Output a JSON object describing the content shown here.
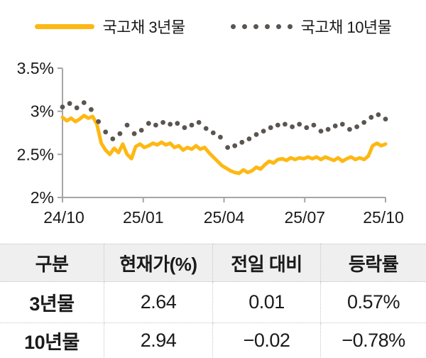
{
  "legend": {
    "series_3y_label": "국고채 3년물",
    "series_10y_label": "국고채 10년물"
  },
  "chart_data": {
    "type": "line",
    "title": "",
    "xlabel": "",
    "ylabel": "",
    "x_tick_labels": [
      "24/10",
      "25/01",
      "25/04",
      "25/07",
      "25/10"
    ],
    "y_tick_labels": [
      "3.5%",
      "3%",
      "2.5%",
      "2%"
    ],
    "y_ticks": [
      3.5,
      3.0,
      2.5,
      2.0
    ],
    "ylim": [
      2.0,
      3.5
    ],
    "grid": false,
    "legend_position": "top",
    "series": [
      {
        "name": "국고채 3년물",
        "style": "solid",
        "color": "#FDB813",
        "values": [
          2.93,
          2.89,
          2.92,
          2.88,
          2.91,
          2.95,
          2.92,
          2.94,
          2.85,
          2.63,
          2.55,
          2.5,
          2.57,
          2.52,
          2.62,
          2.5,
          2.45,
          2.59,
          2.62,
          2.58,
          2.6,
          2.63,
          2.61,
          2.64,
          2.61,
          2.63,
          2.58,
          2.6,
          2.55,
          2.58,
          2.56,
          2.6,
          2.56,
          2.58,
          2.52,
          2.47,
          2.42,
          2.37,
          2.34,
          2.31,
          2.29,
          2.28,
          2.32,
          2.29,
          2.31,
          2.35,
          2.33,
          2.38,
          2.42,
          2.4,
          2.44,
          2.45,
          2.43,
          2.46,
          2.44,
          2.46,
          2.45,
          2.47,
          2.45,
          2.47,
          2.44,
          2.47,
          2.45,
          2.43,
          2.46,
          2.42,
          2.45,
          2.47,
          2.44,
          2.46,
          2.44,
          2.48,
          2.6,
          2.63,
          2.6,
          2.62
        ]
      },
      {
        "name": "국고채 10년물",
        "style": "dotted",
        "color": "#5A554F",
        "values": [
          3.05,
          3.09,
          3.04,
          3.1,
          3.02,
          2.88,
          2.76,
          2.68,
          2.74,
          2.84,
          2.74,
          2.78,
          2.86,
          2.84,
          2.87,
          2.85,
          2.86,
          2.81,
          2.84,
          2.87,
          2.8,
          2.75,
          2.7,
          2.58,
          2.6,
          2.64,
          2.68,
          2.73,
          2.77,
          2.81,
          2.84,
          2.85,
          2.82,
          2.85,
          2.81,
          2.84,
          2.77,
          2.79,
          2.83,
          2.85,
          2.79,
          2.82,
          2.87,
          2.93,
          2.96,
          2.91
        ]
      }
    ]
  },
  "table": {
    "headers": [
      "구분",
      "현재가(%)",
      "전일 대비",
      "등락률"
    ],
    "rows": [
      {
        "label": "3년물",
        "current": "2.64",
        "change": "0.01",
        "rate": "0.57%"
      },
      {
        "label": "10년물",
        "current": "2.94",
        "change": "−0.02",
        "rate": "−0.78%"
      }
    ]
  },
  "colors": {
    "series_3y": "#FDB813",
    "series_10y": "#5A554F",
    "axis": "#A6A6A6",
    "table_header_bg": "#EFEFEF",
    "table_border": "#C6C6C6",
    "text": "#1A1A1A"
  }
}
